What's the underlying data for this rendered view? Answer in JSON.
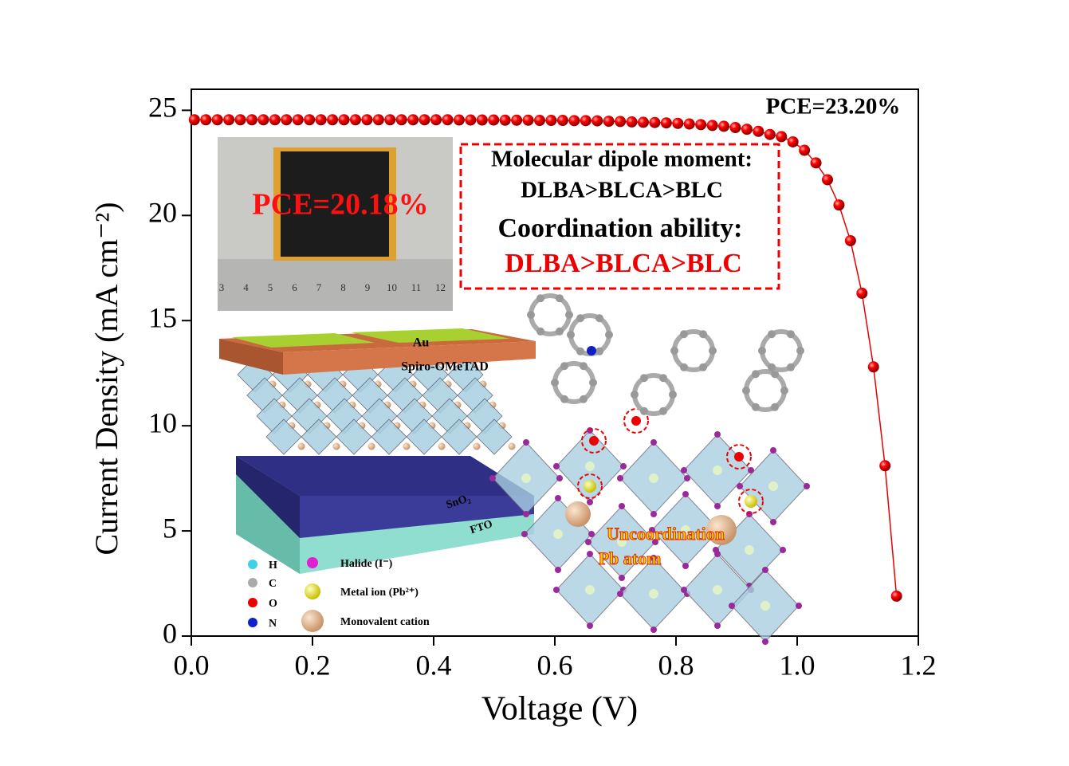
{
  "chart_data": {
    "type": "scatter",
    "x_label": "Voltage (V)",
    "y_label": "Current Density (mA cm⁻²)",
    "x": [
      0.005,
      0.024,
      0.043,
      0.062,
      0.081,
      0.1,
      0.119,
      0.138,
      0.157,
      0.176,
      0.195,
      0.214,
      0.233,
      0.252,
      0.271,
      0.29,
      0.309,
      0.328,
      0.347,
      0.366,
      0.385,
      0.404,
      0.423,
      0.442,
      0.461,
      0.48,
      0.499,
      0.518,
      0.537,
      0.556,
      0.575,
      0.594,
      0.613,
      0.632,
      0.651,
      0.67,
      0.689,
      0.708,
      0.727,
      0.746,
      0.765,
      0.784,
      0.803,
      0.822,
      0.841,
      0.86,
      0.879,
      0.898,
      0.917,
      0.936,
      0.955,
      0.974,
      0.993,
      1.012,
      1.031,
      1.05,
      1.069,
      1.088,
      1.107,
      1.126,
      1.145,
      1.164
    ],
    "values": [
      24.55,
      24.55,
      24.55,
      24.55,
      24.55,
      24.55,
      24.55,
      24.55,
      24.55,
      24.55,
      24.55,
      24.55,
      24.55,
      24.55,
      24.55,
      24.55,
      24.55,
      24.55,
      24.55,
      24.55,
      24.55,
      24.55,
      24.55,
      24.54,
      24.54,
      24.54,
      24.54,
      24.53,
      24.53,
      24.53,
      24.52,
      24.52,
      24.52,
      24.51,
      24.51,
      24.5,
      24.48,
      24.47,
      24.45,
      24.43,
      24.42,
      24.4,
      24.38,
      24.35,
      24.32,
      24.28,
      24.24,
      24.18,
      24.1,
      24.0,
      23.85,
      23.75,
      23.5,
      23.1,
      22.5,
      21.7,
      20.5,
      18.8,
      16.3,
      12.8,
      8.1,
      1.9
    ],
    "color": "#e60000",
    "xlim": [
      0,
      1.2
    ],
    "ylim": [
      0,
      26
    ],
    "xticks": [
      {
        "value": 0,
        "label": "0.0"
      },
      0.2,
      0.4,
      0.6,
      0.8,
      {
        "value": 1,
        "label": "1.0"
      },
      1.2
    ],
    "yticks": [
      0,
      5,
      10,
      15,
      20,
      25
    ],
    "annotations": [
      "PCE=23.20%",
      "PCE=20.18%",
      "Molecular dipole moment:",
      "DLBA>BLCA>BLC",
      "Coordination ability:",
      "DLBA>BLCA>BLC",
      "Au",
      "Spiro-OMeTAD",
      "SnO₂",
      "FTO",
      "Uncoordination",
      "Pb atom"
    ],
    "legend_labels": [
      "H",
      "C",
      "O",
      "N",
      "Halide (I⁻)",
      "Metal ion (Pb²⁺)",
      "Monovalent cation"
    ],
    "ruler_labels": [
      "3",
      "4",
      "5",
      "6",
      "7",
      "8",
      "9",
      "10",
      "11",
      "12"
    ]
  }
}
